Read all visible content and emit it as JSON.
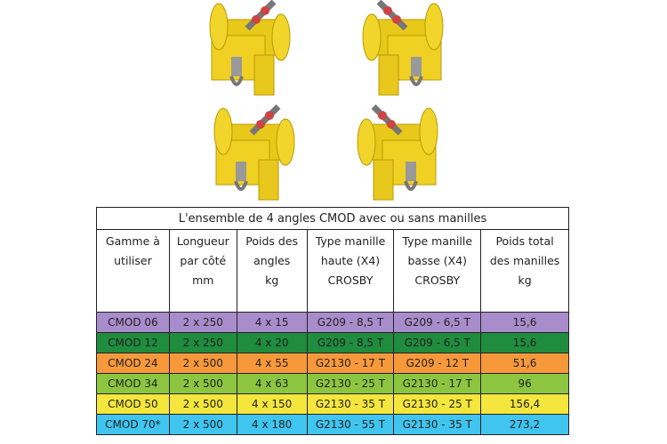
{
  "table": {
    "title": "L'ensemble de 4 angles CMOD avec ou sans manilles",
    "header": [
      [
        "Gamme à",
        "utiliser"
      ],
      [
        "Longueur",
        "par côté",
        "mm"
      ],
      [
        "Poids des",
        "angles",
        "kg"
      ],
      [
        "Type manille",
        "haute (X4)",
        "CROSBY"
      ],
      [
        "Type manille",
        "basse (X4)",
        "CROSBY"
      ],
      [
        "Poids total",
        "des manilles",
        "kg"
      ]
    ],
    "rows": [
      [
        "CMOD 06",
        "2 x 250",
        "4 x 15",
        "G209 - 8,5 T",
        "G209 - 6,5 T",
        "15,6"
      ],
      [
        "CMOD 12",
        "2 x 250",
        "4 x 20",
        "G209 - 8,5 T",
        "G209 - 6,5 T",
        "15,6"
      ],
      [
        "CMOD 24",
        "2 x 500",
        "4 x 55",
        "G2130 - 17 T",
        "G209 - 12 T",
        "51,6"
      ],
      [
        "CMOD 34",
        "2 x 500",
        "4 x 63",
        "G2130 - 25 T",
        "G2130 - 17 T",
        "96"
      ],
      [
        "CMOD 50",
        "2 x 500",
        "4 x 150",
        "G2130 - 35 T",
        "G2130 - 25 T",
        "156,4"
      ],
      [
        "CMOD 70*",
        "2 x 500",
        "4 x 180",
        "G2130 - 55 T",
        "G2130 - 35 T",
        "273,2"
      ]
    ],
    "row_colors": [
      "#a98ccb",
      "#1f8c3e",
      "#f7983b",
      "#8cc640",
      "#f4e63c",
      "#3fc5ef"
    ]
  }
}
